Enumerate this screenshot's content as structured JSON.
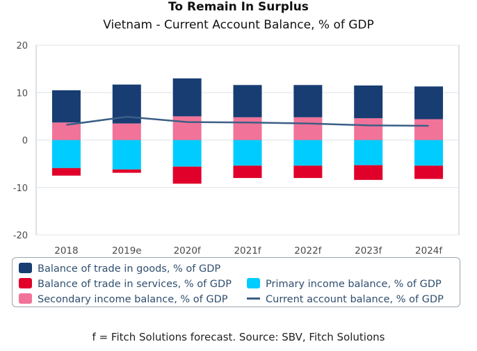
{
  "title": "To Remain In Surplus",
  "subtitle": "Vietnam - Current Account Balance, % of GDP",
  "footnote": "f = Fitch Solutions forecast. Source: SBV, Fitch Solutions",
  "chart_data": {
    "type": "bar",
    "stacked": true,
    "categories": [
      "2018",
      "2019e",
      "2020f",
      "2021f",
      "2022f",
      "2023f",
      "2024f"
    ],
    "ylim": [
      -20,
      20
    ],
    "yticks": [
      "20",
      "10",
      "0",
      "-10",
      "-20"
    ],
    "grid": true,
    "legend_position": "bottom",
    "series": [
      {
        "name": "Balance of trade in goods, % of GDP",
        "kind": "bar",
        "color": "#173d73",
        "values": [
          6.8,
          8.2,
          8.0,
          6.8,
          6.8,
          6.9,
          6.9
        ]
      },
      {
        "name": "Balance of trade in services, % of GDP",
        "kind": "bar",
        "color": "#e0002a",
        "values": [
          -1.6,
          -0.7,
          -3.6,
          -2.6,
          -2.6,
          -3.1,
          -2.8
        ]
      },
      {
        "name": "Primary income balance, % of GDP",
        "kind": "bar",
        "color": "#00ccff",
        "values": [
          -5.9,
          -6.2,
          -5.6,
          -5.4,
          -5.4,
          -5.3,
          -5.4
        ]
      },
      {
        "name": "Secondary income balance, % of GDP",
        "kind": "bar",
        "color": "#f27399",
        "values": [
          3.7,
          3.5,
          5.0,
          4.8,
          4.8,
          4.6,
          4.4
        ]
      },
      {
        "name": "Current account balance, % of GDP",
        "kind": "line",
        "color": "#3b5f86",
        "values": [
          3.2,
          4.9,
          3.8,
          3.7,
          3.5,
          3.1,
          3.0
        ]
      }
    ]
  }
}
